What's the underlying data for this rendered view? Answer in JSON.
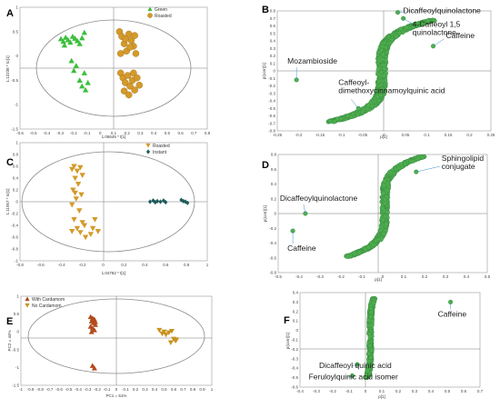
{
  "colors": {
    "green": "#3cbf3c",
    "roasted": "#d49a2a",
    "instant": "#1f5a5a",
    "cardamom": "#b24a1c",
    "no_cardamom": "#c8921f",
    "loading": "#4fae4f",
    "loading_stroke": "#2f7d3a",
    "ellipse": "#8a8a8a"
  },
  "chart_data": [
    {
      "panel": "A",
      "type": "scatter",
      "xlabel": "1.06645 * t[1]",
      "ylabel": "1.12238 * to[1]",
      "xlim": [
        -0.8,
        0.8
      ],
      "ylim": [
        -1.5,
        1.0
      ],
      "xticks": [
        "-0.6",
        "-0.5",
        "-0.4",
        "-0.3",
        "-0.2",
        "-0.1",
        "0",
        "0.1",
        "0.2",
        "0.3",
        "0.4",
        "0.5",
        "0.6",
        "0.7",
        "0.8"
      ],
      "yticks": [
        "1",
        "0.5",
        "0",
        "-0.5",
        "-1",
        "-1.5"
      ],
      "series": [
        {
          "name": "Green",
          "marker": "triangle",
          "color": "#3cbf3c",
          "points": [
            [
              -0.45,
              0.35
            ],
            [
              -0.43,
              0.3
            ],
            [
              -0.41,
              0.38
            ],
            [
              -0.39,
              0.33
            ],
            [
              -0.37,
              0.28
            ],
            [
              -0.35,
              0.4
            ],
            [
              -0.33,
              0.36
            ],
            [
              -0.31,
              0.31
            ],
            [
              -0.29,
              0.25
            ],
            [
              -0.27,
              0.37
            ],
            [
              -0.25,
              0.48
            ],
            [
              -0.42,
              0.22
            ],
            [
              -0.36,
              -0.1
            ],
            [
              -0.32,
              -0.2
            ],
            [
              -0.29,
              -0.5
            ],
            [
              -0.27,
              -0.62
            ],
            [
              -0.25,
              -0.35
            ],
            [
              -0.22,
              -0.55
            ],
            [
              -0.24,
              -0.7
            ],
            [
              -0.34,
              -0.3
            ]
          ]
        },
        {
          "name": "Roasted",
          "marker": "circle",
          "color": "#d49a2a",
          "points": [
            [
              0.05,
              0.5
            ],
            [
              0.07,
              0.4
            ],
            [
              0.09,
              0.25
            ],
            [
              0.11,
              0.1
            ],
            [
              0.13,
              0.45
            ],
            [
              0.15,
              0.32
            ],
            [
              0.17,
              0.2
            ],
            [
              0.19,
              0.05
            ],
            [
              0.06,
              0.05
            ],
            [
              0.1,
              0.35
            ],
            [
              0.14,
              0.18
            ],
            [
              0.18,
              0.42
            ],
            [
              0.06,
              -0.35
            ],
            [
              0.08,
              -0.45
            ],
            [
              0.1,
              -0.55
            ],
            [
              0.12,
              -0.4
            ],
            [
              0.14,
              -0.62
            ],
            [
              0.16,
              -0.5
            ],
            [
              0.18,
              -0.7
            ],
            [
              0.2,
              -0.45
            ],
            [
              0.22,
              -0.6
            ],
            [
              0.09,
              -0.72
            ],
            [
              0.13,
              -0.8
            ],
            [
              0.17,
              -0.35
            ]
          ]
        }
      ]
    },
    {
      "panel": "B",
      "type": "scatter",
      "xlabel": "p[1]",
      "ylabel": "p(corr)[1]",
      "xlim": [
        -0.25,
        0.25
      ],
      "ylim": [
        -0.8,
        0.8
      ],
      "xticks": [
        "-0.25",
        "-0.2",
        "-0.15",
        "-0.1",
        "-0.05",
        "0",
        "0.05",
        "0.1",
        "0.15",
        "0.2",
        "0.25"
      ],
      "yticks": [
        "0.8",
        "0.7",
        "0.6",
        "0.5",
        "0.4",
        "0.3",
        "0.2",
        "0.1",
        "0",
        "-0.1",
        "-0.2",
        "-0.3",
        "-0.4",
        "-0.5",
        "-0.6",
        "-0.7",
        "-0.8"
      ],
      "labeled_points": [
        {
          "x": 0.032,
          "y": 0.78,
          "text": "Dicaffeoylquinolactone"
        },
        {
          "x": 0.045,
          "y": 0.7,
          "text": "4-Caffeoyl 1,5 quinolactone"
        },
        {
          "x": 0.115,
          "y": 0.33,
          "text": "Caffeine"
        },
        {
          "x": -0.205,
          "y": -0.12,
          "text": "Mozambioside"
        },
        {
          "x": -0.06,
          "y": -0.5,
          "text": "Caffeoyl-dimethoxycinnamoylquinic acid"
        }
      ]
    },
    {
      "panel": "C",
      "type": "scatter",
      "xlabel": "1.04782 * t[1]",
      "ylabel": "1.11957 * to[1]",
      "xlim": [
        -0.8,
        1.0
      ],
      "ylim": [
        -1.0,
        1.0
      ],
      "xticks": [
        "-0.8",
        "-0.6",
        "-0.4",
        "-0.2",
        "0",
        "0.2",
        "0.4",
        "0.6",
        "0.8",
        "1"
      ],
      "yticks": [
        "1",
        "0.8",
        "0.6",
        "0.4",
        "0.2",
        "0",
        "-0.2",
        "-0.4",
        "-0.6",
        "-0.8",
        "-1"
      ],
      "series": [
        {
          "name": "Roasted",
          "marker": "triangle-down",
          "color": "#d49a2a",
          "points": [
            [
              -0.3,
              0.55
            ],
            [
              -0.28,
              0.6
            ],
            [
              -0.25,
              0.52
            ],
            [
              -0.22,
              0.58
            ],
            [
              -0.2,
              0.45
            ],
            [
              -0.27,
              0.4
            ],
            [
              -0.24,
              0.3
            ],
            [
              -0.29,
              0.2
            ],
            [
              -0.21,
              0.12
            ],
            [
              -0.26,
              0.05
            ],
            [
              -0.3,
              -0.05
            ],
            [
              -0.23,
              -0.15
            ],
            [
              -0.28,
              -0.3
            ],
            [
              -0.2,
              -0.35
            ],
            [
              -0.25,
              -0.45
            ],
            [
              -0.22,
              -0.52
            ],
            [
              -0.3,
              -0.5
            ],
            [
              -0.18,
              -0.4
            ],
            [
              -0.1,
              -0.45
            ],
            [
              -0.08,
              -0.3
            ],
            [
              -0.12,
              -0.55
            ],
            [
              -0.05,
              -0.5
            ],
            [
              -0.27,
              0.15
            ],
            [
              -0.17,
              -0.6
            ]
          ]
        },
        {
          "name": "Instant",
          "marker": "diamond",
          "color": "#1f5a5a",
          "points": [
            [
              0.45,
              0.0
            ],
            [
              0.48,
              0.02
            ],
            [
              0.5,
              -0.01
            ],
            [
              0.52,
              0.01
            ],
            [
              0.55,
              0.0
            ],
            [
              0.58,
              0.02
            ],
            [
              0.6,
              -0.01
            ],
            [
              0.75,
              0.03
            ],
            [
              0.77,
              0.01
            ],
            [
              0.79,
              0.0
            ],
            [
              0.81,
              -0.02
            ]
          ]
        }
      ]
    },
    {
      "panel": "D",
      "type": "scatter",
      "xlabel": "p[1]",
      "ylabel": "p(corr)[1]",
      "xlim": [
        -0.5,
        0.5
      ],
      "ylim": [
        -0.9,
        0.8
      ],
      "xticks": [
        "-0.5",
        "-0.4",
        "-0.3",
        "-0.2",
        "-0.1",
        "0",
        "0.1",
        "0.2",
        "0.3",
        "0.4",
        "0.5"
      ],
      "yticks": [
        "0.8",
        "0.6",
        "0.4",
        "0.2",
        "0",
        "-0.2",
        "-0.4",
        "-0.6",
        "-0.8"
      ],
      "labeled_points": [
        {
          "x": 0.16,
          "y": 0.55,
          "text": "Sphingolipid conjugate"
        },
        {
          "x": -0.37,
          "y": -0.05,
          "text": "Dicaffeoylquinolactone"
        },
        {
          "x": -0.43,
          "y": -0.3,
          "text": "Caffeine"
        }
      ]
    },
    {
      "panel": "E",
      "type": "scatter",
      "xlabel": "PC1 = 51%",
      "ylabel": "PC2 = 44%",
      "xlim": [
        -1.0,
        1.0
      ],
      "ylim": [
        -1.5,
        1.0
      ],
      "xticks": [
        "-1",
        "-0.9",
        "-0.8",
        "-0.7",
        "-0.6",
        "-0.5",
        "-0.4",
        "-0.3",
        "-0.2",
        "-0.1",
        "0",
        "0.1",
        "0.2",
        "0.3",
        "0.4",
        "0.5",
        "0.6",
        "0.7",
        "0.8",
        "0.9",
        "1"
      ],
      "yticks": [
        "1",
        "0.5",
        "0",
        "-0.5",
        "-1",
        "-1.5"
      ],
      "series": [
        {
          "name": "With Cardamom",
          "marker": "triangle",
          "color": "#b24a1c",
          "points": [
            [
              -0.27,
              0.42
            ],
            [
              -0.25,
              0.38
            ],
            [
              -0.23,
              0.35
            ],
            [
              -0.26,
              0.3
            ],
            [
              -0.24,
              0.25
            ],
            [
              -0.22,
              0.2
            ],
            [
              -0.27,
              0.15
            ],
            [
              -0.25,
              0.1
            ],
            [
              -0.23,
              0.05
            ],
            [
              -0.26,
              0.0
            ],
            [
              -0.24,
              0.35
            ],
            [
              -0.22,
              0.28
            ],
            [
              -0.25,
              -0.95
            ],
            [
              -0.23,
              -1.02
            ]
          ]
        },
        {
          "name": "No Cardamom",
          "marker": "triangle-down",
          "color": "#c8921f",
          "points": [
            [
              0.45,
              0.05
            ],
            [
              0.5,
              0.0
            ],
            [
              0.55,
              -0.02
            ],
            [
              0.48,
              -0.05
            ],
            [
              0.52,
              -0.08
            ],
            [
              0.58,
              0.02
            ],
            [
              0.6,
              -0.2
            ],
            [
              0.62,
              -0.25
            ],
            [
              0.57,
              -0.3
            ],
            [
              0.63,
              -0.22
            ]
          ]
        }
      ]
    },
    {
      "panel": "F",
      "type": "scatter",
      "xlabel": "p[1]",
      "ylabel": "p(corr)[1]",
      "xlim": [
        -0.4,
        0.7
      ],
      "ylim": [
        -0.6,
        0.4
      ],
      "xticks": [
        "-0.4",
        "-0.3",
        "-0.2",
        "-0.1",
        "0",
        "0.1",
        "0.2",
        "0.3",
        "0.4",
        "0.5",
        "0.6",
        "0.7"
      ],
      "yticks": [
        "0.4",
        "0.3",
        "0.2",
        "0.1",
        "0",
        "-0.1",
        "-0.2",
        "-0.3",
        "-0.4",
        "-0.5",
        "-0.6"
      ],
      "labeled_points": [
        {
          "x": 0.52,
          "y": 0.3,
          "text": "Caffeine"
        },
        {
          "x": -0.05,
          "y": -0.36,
          "text": "Dicaffeoyl quinic acid"
        },
        {
          "x": -0.08,
          "y": -0.48,
          "text": "Feruloylquinic acid isomer"
        }
      ]
    }
  ]
}
